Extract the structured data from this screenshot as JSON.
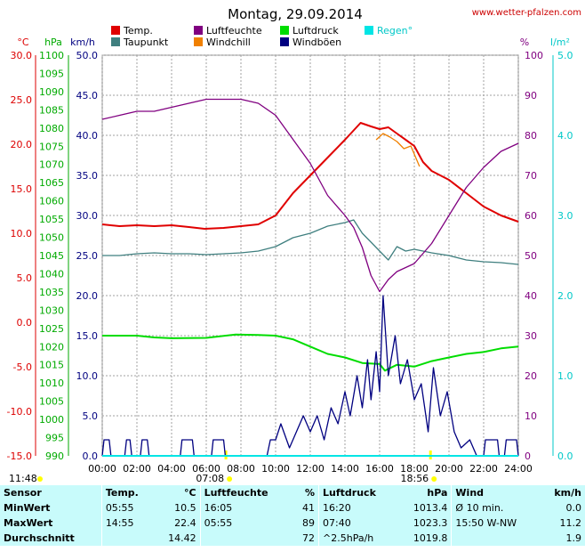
{
  "header": {
    "title": "Montag, 29.09.2014",
    "site": "www.wetter-pfalzen.com"
  },
  "axes": {
    "temp_unit": "°C",
    "pressure_unit": "hPa",
    "wind_unit": "km/h",
    "humidity_unit": "%",
    "rain_unit": "l/m²",
    "temp_ticks": [
      "30.0",
      "25.0",
      "20.0",
      "15.0",
      "10.0",
      "5.0",
      "0.0",
      "-5.0",
      "-10.0",
      "-15.0"
    ],
    "pressure_ticks": [
      "1100",
      "1095",
      "1090",
      "1085",
      "1080",
      "1075",
      "1070",
      "1065",
      "1060",
      "1055",
      "1050",
      "1045",
      "1040",
      "1035",
      "1030",
      "1025",
      "1020",
      "1015",
      "1010",
      "1005",
      "1000",
      "995",
      "990"
    ],
    "wind_ticks": [
      "50.0",
      "45.0",
      "40.0",
      "35.0",
      "30.0",
      "25.0",
      "20.0",
      "15.0",
      "10.0",
      "5.0",
      "0.0"
    ],
    "humidity_ticks": [
      "100",
      "90",
      "80",
      "70",
      "60",
      "50",
      "40",
      "30",
      "20",
      "10",
      "0"
    ],
    "rain_ticks": [
      "5.0",
      "4.0",
      "3.0",
      "2.0",
      "1.0",
      "0.0"
    ],
    "time_ticks": [
      "00:00",
      "02:00",
      "04:00",
      "06:00",
      "08:00",
      "10:00",
      "12:00",
      "14:00",
      "16:00",
      "18:00",
      "20:00",
      "22:00",
      "24:00"
    ],
    "sunrise": "07:08",
    "sunset": "18:56",
    "daylength": "11:48"
  },
  "legend": [
    {
      "label": "Temp.",
      "color": "#e00000"
    },
    {
      "label": "Luftfeuchte",
      "color": "#800080"
    },
    {
      "label": "Luftdruck",
      "color": "#00dd00"
    },
    {
      "label": "Regen°",
      "color": "#00e5e5"
    },
    {
      "label": "Taupunkt",
      "color": "#3f7f7f"
    },
    {
      "label": "Windchill",
      "color": "#f08000"
    },
    {
      "label": "Windböen",
      "color": "#000080"
    }
  ],
  "chart_data": {
    "type": "line",
    "x_unit": "hours",
    "series": [
      {
        "name": "Temp.",
        "color": "#e00000",
        "axis": "temp",
        "points": [
          [
            0,
            11.0
          ],
          [
            1,
            10.8
          ],
          [
            2,
            10.9
          ],
          [
            3,
            10.8
          ],
          [
            4,
            10.9
          ],
          [
            5,
            10.7
          ],
          [
            5.9,
            10.5
          ],
          [
            7,
            10.6
          ],
          [
            8,
            10.8
          ],
          [
            9,
            11.0
          ],
          [
            10,
            12.0
          ],
          [
            11,
            14.5
          ],
          [
            12,
            16.5
          ],
          [
            13,
            18.5
          ],
          [
            14,
            20.5
          ],
          [
            14.9,
            22.4
          ],
          [
            15.5,
            22.0
          ],
          [
            16,
            21.7
          ],
          [
            16.5,
            21.9
          ],
          [
            17,
            21.2
          ],
          [
            17.5,
            20.5
          ],
          [
            18,
            19.8
          ],
          [
            18.5,
            18.0
          ],
          [
            19,
            17.0
          ],
          [
            20,
            16.0
          ],
          [
            21,
            14.5
          ],
          [
            22,
            13.0
          ],
          [
            23,
            12.0
          ],
          [
            24,
            11.3
          ]
        ]
      },
      {
        "name": "Taupunkt",
        "color": "#3f7f7f",
        "axis": "temp",
        "points": [
          [
            0,
            7.5
          ],
          [
            1,
            7.5
          ],
          [
            2,
            7.7
          ],
          [
            3,
            7.8
          ],
          [
            4,
            7.7
          ],
          [
            5,
            7.7
          ],
          [
            6,
            7.6
          ],
          [
            7,
            7.7
          ],
          [
            8,
            7.8
          ],
          [
            9,
            8.0
          ],
          [
            10,
            8.5
          ],
          [
            11,
            9.5
          ],
          [
            12,
            10.0
          ],
          [
            13,
            10.8
          ],
          [
            14,
            11.2
          ],
          [
            14.5,
            11.5
          ],
          [
            15,
            10.0
          ],
          [
            15.5,
            9.0
          ],
          [
            16,
            8.0
          ],
          [
            16.5,
            7.0
          ],
          [
            17,
            8.5
          ],
          [
            17.5,
            8.0
          ],
          [
            18,
            8.2
          ],
          [
            19,
            7.8
          ],
          [
            20,
            7.5
          ],
          [
            21,
            7.0
          ],
          [
            22,
            6.8
          ],
          [
            23,
            6.7
          ],
          [
            24,
            6.5
          ]
        ]
      },
      {
        "name": "Luftfeuchte",
        "color": "#800080",
        "axis": "humidity",
        "points": [
          [
            0,
            84
          ],
          [
            1,
            85
          ],
          [
            2,
            86
          ],
          [
            3,
            86
          ],
          [
            4,
            87
          ],
          [
            5,
            88
          ],
          [
            6,
            89
          ],
          [
            7,
            89
          ],
          [
            8,
            89
          ],
          [
            9,
            88
          ],
          [
            10,
            85
          ],
          [
            11,
            79
          ],
          [
            12,
            73
          ],
          [
            13,
            65
          ],
          [
            14,
            60
          ],
          [
            14.5,
            57
          ],
          [
            15,
            52
          ],
          [
            15.5,
            45
          ],
          [
            16,
            41
          ],
          [
            16.5,
            44
          ],
          [
            17,
            46
          ],
          [
            17.5,
            47
          ],
          [
            18,
            48
          ],
          [
            19,
            53
          ],
          [
            20,
            60
          ],
          [
            21,
            67
          ],
          [
            22,
            72
          ],
          [
            23,
            76
          ],
          [
            24,
            78
          ]
        ]
      },
      {
        "name": "Windchill",
        "color": "#f08000",
        "axis": "temp",
        "points": [
          [
            15.8,
            20.5
          ],
          [
            16.2,
            21.2
          ],
          [
            16.6,
            20.8
          ],
          [
            17,
            20.3
          ],
          [
            17.4,
            19.5
          ],
          [
            17.8,
            19.8
          ],
          [
            18.3,
            17.5
          ]
        ]
      },
      {
        "name": "Luftdruck",
        "color": "#00dd00",
        "axis": "pressure",
        "points": [
          [
            0,
            1023.0
          ],
          [
            2,
            1023.0
          ],
          [
            3,
            1022.5
          ],
          [
            4,
            1022.3
          ],
          [
            6,
            1022.4
          ],
          [
            7.7,
            1023.3
          ],
          [
            9,
            1023.2
          ],
          [
            10,
            1023.0
          ],
          [
            11,
            1022.0
          ],
          [
            12,
            1020.0
          ],
          [
            13,
            1018.0
          ],
          [
            14,
            1017.0
          ],
          [
            15,
            1015.5
          ],
          [
            16,
            1015.2
          ],
          [
            16.3,
            1013.4
          ],
          [
            17,
            1015.0
          ],
          [
            18,
            1014.5
          ],
          [
            19,
            1016.0
          ],
          [
            20,
            1017.0
          ],
          [
            21,
            1018.0
          ],
          [
            22,
            1018.5
          ],
          [
            23,
            1019.5
          ],
          [
            24,
            1020.0
          ]
        ]
      },
      {
        "name": "Windböen",
        "color": "#000080",
        "axis": "wind",
        "points": [
          [
            0,
            0
          ],
          [
            0.1,
            2
          ],
          [
            0.4,
            2
          ],
          [
            0.5,
            0
          ],
          [
            1.3,
            0
          ],
          [
            1.4,
            2
          ],
          [
            1.6,
            2
          ],
          [
            1.7,
            0
          ],
          [
            2.2,
            0
          ],
          [
            2.3,
            2
          ],
          [
            2.6,
            2
          ],
          [
            2.7,
            0
          ],
          [
            4.5,
            0
          ],
          [
            4.6,
            2
          ],
          [
            5.2,
            2
          ],
          [
            5.3,
            0
          ],
          [
            6.3,
            0
          ],
          [
            6.4,
            2
          ],
          [
            7.0,
            2
          ],
          [
            7.1,
            0
          ],
          [
            9.5,
            0
          ],
          [
            9.7,
            2
          ],
          [
            10,
            2
          ],
          [
            10.3,
            4
          ],
          [
            10.8,
            1
          ],
          [
            11.2,
            3
          ],
          [
            11.6,
            5
          ],
          [
            12,
            3
          ],
          [
            12.4,
            5
          ],
          [
            12.8,
            2
          ],
          [
            13.2,
            6
          ],
          [
            13.6,
            4
          ],
          [
            14,
            8
          ],
          [
            14.3,
            5
          ],
          [
            14.7,
            10
          ],
          [
            15.0,
            6
          ],
          [
            15.3,
            12
          ],
          [
            15.5,
            7
          ],
          [
            15.8,
            13
          ],
          [
            16.0,
            8
          ],
          [
            16.2,
            20
          ],
          [
            16.5,
            10
          ],
          [
            16.9,
            15
          ],
          [
            17.2,
            9
          ],
          [
            17.6,
            12
          ],
          [
            18.0,
            7
          ],
          [
            18.4,
            9
          ],
          [
            18.8,
            3
          ],
          [
            19.1,
            11
          ],
          [
            19.5,
            5
          ],
          [
            19.9,
            8
          ],
          [
            20.3,
            3
          ],
          [
            20.7,
            1
          ],
          [
            21.2,
            2
          ],
          [
            21.6,
            0
          ],
          [
            22,
            0
          ],
          [
            22.1,
            2
          ],
          [
            22.8,
            2
          ],
          [
            22.9,
            0
          ],
          [
            23.2,
            0
          ],
          [
            23.3,
            2
          ],
          [
            23.9,
            2
          ],
          [
            24,
            0
          ]
        ]
      },
      {
        "name": "Regen°",
        "color": "#00e5e5",
        "axis": "rain",
        "points": [
          [
            0,
            0
          ],
          [
            24,
            0
          ]
        ]
      }
    ],
    "ylim": {
      "temp": [
        -15,
        30
      ],
      "pressure": [
        990,
        1100
      ],
      "wind": [
        0,
        50
      ],
      "humidity": [
        0,
        100
      ],
      "rain": [
        0,
        5
      ]
    },
    "xlim": [
      0,
      24
    ],
    "grid": true
  },
  "table": {
    "headers": [
      "Sensor",
      "Temp.",
      "°C",
      "Luftfeuchte",
      "%",
      "Luftdruck",
      "hPa",
      "Wind",
      "km/h"
    ],
    "rows": [
      {
        "label": "MinWert",
        "c": [
          "05:55",
          "10.5",
          "16:05",
          "41",
          "16:20",
          "1013.4",
          "Ø 10 min.",
          "0.0"
        ]
      },
      {
        "label": "MaxWert",
        "c": [
          "14:55",
          "22.4",
          "05:55",
          "89",
          "07:40",
          "1023.3",
          "15:50  W-NW",
          "11.2"
        ]
      },
      {
        "label": "Durchschnitt",
        "c": [
          "",
          "14.42",
          "",
          "72",
          "^2.5hPa/h",
          "1019.8",
          "",
          "1.9"
        ]
      }
    ]
  }
}
